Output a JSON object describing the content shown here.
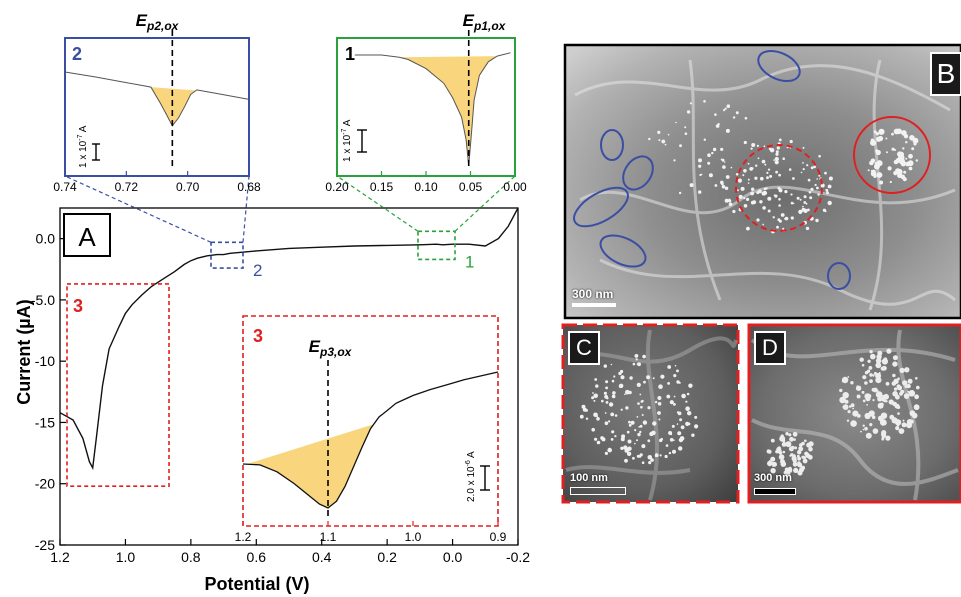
{
  "chart_data": {
    "type": "line",
    "panel_label": "A",
    "xlabel": "Potential (V)",
    "ylabel": "Current (µA)",
    "xlim": [
      1.2,
      -0.2
    ],
    "ylim": [
      -25,
      2.5
    ],
    "xticks": [
      "1.2",
      "1.0",
      "0.8",
      "0.6",
      "0.4",
      "0.2",
      "0.0",
      "-0.2"
    ],
    "yticks": [
      "0.0",
      "-5.0",
      "-10",
      "-15",
      "-20",
      "-25"
    ],
    "series": [
      {
        "x": [
          1.2,
          1.16,
          1.13,
          1.11,
          1.1,
          1.09,
          1.07,
          1.05,
          1.02,
          1.0,
          0.98,
          0.95,
          0.92,
          0.88,
          0.85,
          0.82,
          0.8,
          0.78,
          0.75,
          0.72,
          0.7,
          0.68,
          0.6,
          0.5,
          0.4,
          0.3,
          0.2,
          0.1,
          0.05,
          0.03,
          0.0,
          -0.05,
          -0.1,
          -0.14,
          -0.17,
          -0.2
        ],
        "y": [
          -14.2,
          -14.8,
          -16.3,
          -18.2,
          -18.7,
          -16.5,
          -12.0,
          -9.0,
          -7.2,
          -6.1,
          -5.4,
          -4.6,
          -3.9,
          -3.2,
          -2.7,
          -2.1,
          -1.8,
          -1.6,
          -1.4,
          -1.3,
          -1.3,
          -1.2,
          -1.0,
          -0.8,
          -0.7,
          -0.6,
          -0.55,
          -0.5,
          -0.45,
          -0.5,
          -0.45,
          -0.45,
          -0.6,
          0.0,
          1.0,
          2.5
        ]
      }
    ],
    "boxes": [
      {
        "label": "2",
        "x_range": [
          0.74,
          0.68
        ],
        "color": "#3a4fa3"
      },
      {
        "label": "1",
        "x_range": [
          0.05,
          0.0
        ],
        "color": "#2aa13a"
      },
      {
        "label": "3",
        "x_range": [
          1.2,
          0.9
        ],
        "color": "#e02020"
      }
    ],
    "insets": [
      {
        "id": "inset2",
        "number": "2",
        "peak_label_main": "E",
        "peak_label_sub": "p2,ox",
        "scale_label": "1 x 10",
        "scale_exp": "-7",
        "scale_unit": " A",
        "xlim": [
          0.74,
          0.68
        ],
        "xticks": [
          "0.74",
          "0.72",
          "0.70",
          "0.68"
        ],
        "peak_x": 0.705,
        "color": "#3a4fa3",
        "trace": {
          "x": [
            0.74,
            0.73,
            0.72,
            0.715,
            0.712,
            0.709,
            0.707,
            0.705,
            0.703,
            0.701,
            0.699,
            0.697,
            0.695,
            0.69,
            0.68
          ],
          "y": [
            0.0,
            0.09,
            0.19,
            0.24,
            0.27,
            0.55,
            0.75,
            0.96,
            0.82,
            0.62,
            0.4,
            0.32,
            0.34,
            0.39,
            0.49
          ]
        },
        "baseline": {
          "x": [
            0.712,
            0.695
          ],
          "y": [
            0.27,
            0.34
          ]
        }
      },
      {
        "id": "inset1",
        "number": "1",
        "peak_label_main": "E",
        "peak_label_sub": "p1,ox",
        "scale_label": "1 x 10",
        "scale_exp": "-7",
        "scale_unit": " A",
        "xlim": [
          0.2,
          0.0
        ],
        "xticks": [
          "0.20",
          "0.15",
          "0.10",
          "0.05",
          "0.00"
        ],
        "peak_x": 0.052,
        "color": "#2aa13a",
        "trace": {
          "x": [
            0.18,
            0.15,
            0.13,
            0.12,
            0.1,
            0.08,
            0.07,
            0.06,
            0.055,
            0.052,
            0.049,
            0.046,
            0.04,
            0.03,
            0.02,
            0.005
          ],
          "y": [
            0.0,
            0.0,
            0.02,
            0.04,
            0.12,
            0.25,
            0.38,
            0.55,
            0.75,
            0.98,
            0.7,
            0.4,
            0.18,
            0.06,
            0.01,
            -0.02
          ]
        },
        "baseline": {
          "x": [
            0.13,
            0.02
          ],
          "y": [
            0.02,
            0.01
          ]
        }
      },
      {
        "id": "inset3",
        "number": "3",
        "peak_label_main": "E",
        "peak_label_sub": "p3,ox",
        "scale_label": "2.0 x 10",
        "scale_exp": "-6",
        "scale_unit": " A",
        "xlim": [
          1.2,
          0.9
        ],
        "xticks": [
          "1.2",
          "1.1",
          "1.0",
          "0.9"
        ],
        "peak_x": 1.1,
        "color": "#e02020",
        "trace": {
          "x": [
            1.2,
            1.18,
            1.16,
            1.14,
            1.12,
            1.11,
            1.1,
            1.09,
            1.08,
            1.07,
            1.06,
            1.05,
            1.04,
            1.03,
            1.02,
            1.01,
            1.0,
            0.98,
            0.96,
            0.94,
            0.92,
            0.9
          ],
          "y": [
            -14.2,
            -14.3,
            -15.0,
            -16.2,
            -17.6,
            -18.3,
            -18.7,
            -18.0,
            -16.5,
            -14.5,
            -12.5,
            -10.6,
            -9.4,
            -8.7,
            -8.0,
            -7.6,
            -7.2,
            -6.6,
            -6.1,
            -5.6,
            -5.2,
            -4.8
          ]
        },
        "baseline": {
          "x": [
            1.195,
            1.045
          ],
          "y": [
            -14.2,
            -10.1
          ]
        }
      }
    ]
  },
  "sem": {
    "panel_B": {
      "label": "B",
      "scale": "300 nm"
    },
    "panel_C": {
      "label": "C",
      "scale": "100 nm"
    },
    "panel_D": {
      "label": "D",
      "scale": "300 nm"
    }
  },
  "colors": {
    "fill": "#f9d57e",
    "blue": "#3a4fa3",
    "green": "#2aa13a",
    "red": "#e02020",
    "curve": "#111111"
  }
}
